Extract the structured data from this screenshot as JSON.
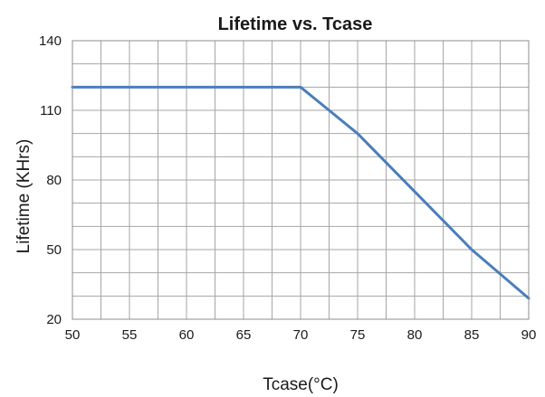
{
  "chart_data": {
    "type": "line",
    "title": "Lifetime vs. Tcase",
    "xlabel": "Tcase(°C)",
    "ylabel": "Lifetime (KHrs)",
    "xlim": [
      50,
      90
    ],
    "ylim": [
      20,
      140
    ],
    "x_ticks": [
      50,
      55,
      60,
      65,
      70,
      75,
      80,
      85,
      90
    ],
    "y_ticks": [
      20,
      50,
      80,
      110,
      140
    ],
    "grid": true,
    "x_minor_step": 2.5,
    "y_minor_step": 10,
    "series": [
      {
        "color": "#4a7ebb",
        "x": [
          50,
          70,
          72.5,
          75,
          80,
          85,
          90
        ],
        "y": [
          120,
          120,
          110,
          100,
          75,
          50,
          29
        ]
      }
    ]
  }
}
